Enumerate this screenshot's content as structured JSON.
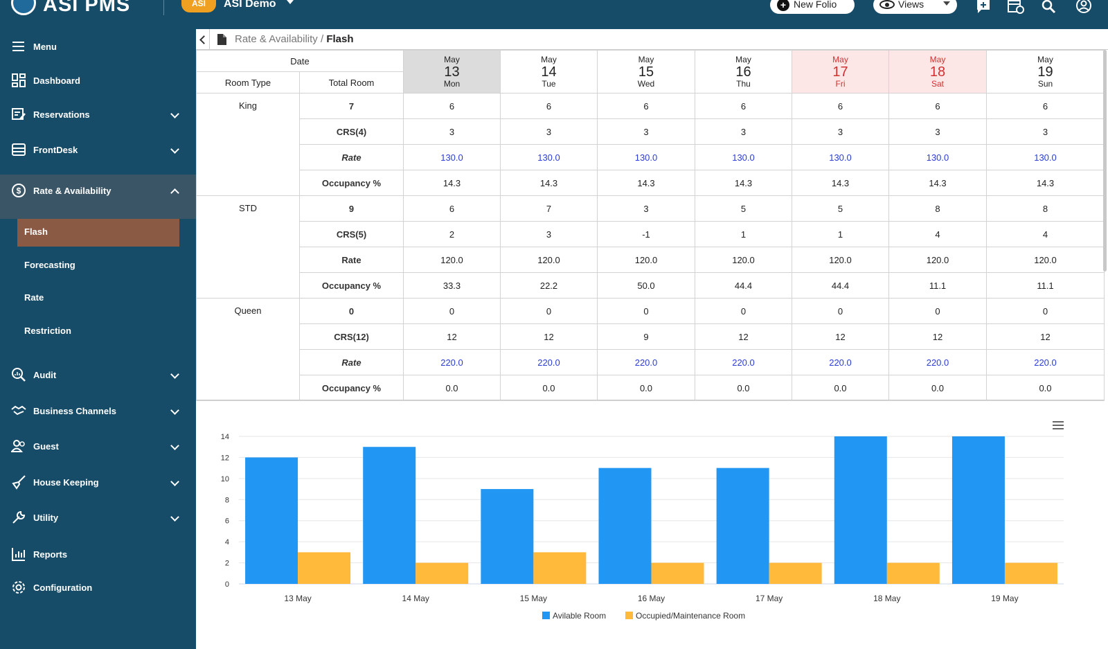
{
  "app": {
    "logo_text": "ASI PMS",
    "hotel_badge": "ASI",
    "property_name": "ASI Demo",
    "new_folio_label": "New Folio",
    "views_label": "Views"
  },
  "sidebar": {
    "menu_label": "Menu",
    "items": [
      {
        "label": "Dashboard",
        "icon": "dashboard-icon"
      },
      {
        "label": "Reservations",
        "icon": "reservations-icon"
      },
      {
        "label": "FrontDesk",
        "icon": "frontdesk-icon"
      },
      {
        "label": "Rate & Availability",
        "icon": "dollar-icon"
      },
      {
        "label": "Audit",
        "icon": "audit-icon"
      },
      {
        "label": "Business Channels",
        "icon": "handshake-icon"
      },
      {
        "label": "Guest",
        "icon": "guest-icon"
      },
      {
        "label": "House Keeping",
        "icon": "broom-icon"
      },
      {
        "label": "Utility",
        "icon": "wrench-icon"
      },
      {
        "label": "Reports",
        "icon": "reports-icon"
      },
      {
        "label": "Configuration",
        "icon": "gear-icon"
      }
    ],
    "sub_items": [
      "Flash",
      "Forecasting",
      "Rate",
      "Restriction"
    ],
    "active_sub": "Flash"
  },
  "breadcrumb": {
    "parent": "Rate & Availability",
    "separator": " / ",
    "current": "Flash"
  },
  "grid": {
    "header_date": "Date",
    "header_room_type": "Room Type",
    "header_total_room": "Total Room",
    "dates": [
      {
        "month": "May",
        "day": "13",
        "weekday": "Mon"
      },
      {
        "month": "May",
        "day": "14",
        "weekday": "Tue"
      },
      {
        "month": "May",
        "day": "15",
        "weekday": "Wed"
      },
      {
        "month": "May",
        "day": "16",
        "weekday": "Thu"
      },
      {
        "month": "May",
        "day": "17",
        "weekday": "Fri"
      },
      {
        "month": "May",
        "day": "18",
        "weekday": "Sat"
      },
      {
        "month": "May",
        "day": "19",
        "weekday": "Sun"
      }
    ],
    "room_types": [
      {
        "name": "King",
        "rows": [
          {
            "label": "7",
            "values": [
              "6",
              "6",
              "6",
              "6",
              "6",
              "6",
              "6"
            ]
          },
          {
            "label": "CRS(4)",
            "values": [
              "3",
              "3",
              "3",
              "3",
              "3",
              "3",
              "3"
            ]
          },
          {
            "label": "Rate",
            "values": [
              "130.0",
              "130.0",
              "130.0",
              "130.0",
              "130.0",
              "130.0",
              "130.0"
            ]
          },
          {
            "label": "Occupancy %",
            "values": [
              "14.3",
              "14.3",
              "14.3",
              "14.3",
              "14.3",
              "14.3",
              "14.3"
            ]
          }
        ]
      },
      {
        "name": "STD",
        "rows": [
          {
            "label": "9",
            "values": [
              "6",
              "7",
              "3",
              "5",
              "5",
              "8",
              "8"
            ]
          },
          {
            "label": "CRS(5)",
            "values": [
              "2",
              "3",
              "-1",
              "1",
              "1",
              "4",
              "4"
            ]
          },
          {
            "label": "Rate",
            "values": [
              "120.0",
              "120.0",
              "120.0",
              "120.0",
              "120.0",
              "120.0",
              "120.0"
            ]
          },
          {
            "label": "Occupancy %",
            "values": [
              "33.3",
              "22.2",
              "50.0",
              "44.4",
              "44.4",
              "11.1",
              "11.1"
            ]
          }
        ]
      },
      {
        "name": "Queen",
        "rows": [
          {
            "label": "0",
            "values": [
              "0",
              "0",
              "0",
              "0",
              "0",
              "0",
              "0"
            ]
          },
          {
            "label": "CRS(12)",
            "values": [
              "12",
              "12",
              "9",
              "12",
              "12",
              "12",
              "12"
            ]
          },
          {
            "label": "Rate",
            "values": [
              "220.0",
              "220.0",
              "220.0",
              "220.0",
              "220.0",
              "220.0",
              "220.0"
            ]
          },
          {
            "label": "Occupancy %",
            "values": [
              "0.0",
              "0.0",
              "0.0",
              "0.0",
              "0.0",
              "0.0",
              "0.0"
            ]
          }
        ]
      }
    ]
  },
  "colors": {
    "sidebar_bg": "#174c68",
    "active_sub_bg": "#8a5a45",
    "weekend_bg": "#fde6e6",
    "weekend_text": "#d0302f",
    "rate_blue": "#2a3bd6",
    "series_available": "#2196f3",
    "series_occupied": "#ffb93b"
  },
  "chart_data": {
    "type": "bar",
    "categories": [
      "13 May",
      "14 May",
      "15 May",
      "16 May",
      "17 May",
      "18 May",
      "19 May"
    ],
    "series": [
      {
        "name": "Avilable Room",
        "values": [
          12,
          13,
          9,
          11,
          11,
          14,
          14
        ]
      },
      {
        "name": "Occupied/Maintenance Room",
        "values": [
          3,
          2,
          3,
          2,
          2,
          2,
          2
        ]
      }
    ],
    "ylim": [
      0,
      14
    ],
    "yticks": [
      0,
      2,
      4,
      6,
      8,
      10,
      12,
      14
    ],
    "grid": true,
    "legend": "bottom-center"
  }
}
